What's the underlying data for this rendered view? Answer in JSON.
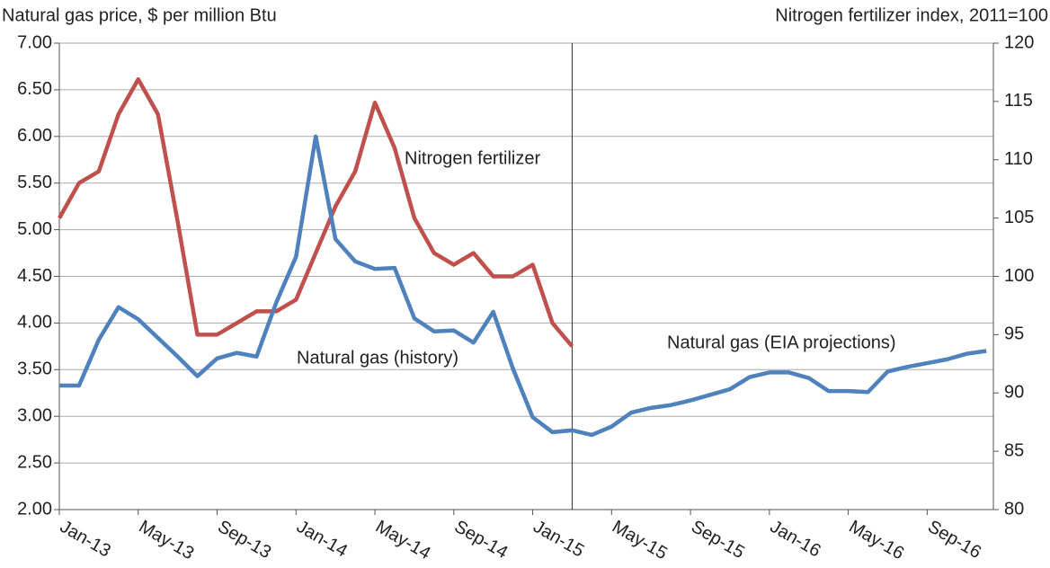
{
  "chart_data": {
    "type": "line",
    "y_title": "Natural gas price, $ per million Btu",
    "y2_title": "Nitrogen fertilizer index, 2011=100",
    "categories": [
      "Jan-13",
      null,
      null,
      null,
      "May-13",
      null,
      null,
      null,
      "Sep-13",
      null,
      null,
      null,
      "Jan-14",
      null,
      null,
      null,
      "May-14",
      null,
      null,
      null,
      "Sep-14",
      null,
      null,
      null,
      "Jan-15",
      null,
      null,
      null,
      "May-15",
      null,
      null,
      null,
      "Sep-15",
      null,
      null,
      null,
      "Jan-16",
      null,
      null,
      null,
      "May-16",
      null,
      null,
      null,
      "Sep-16",
      null,
      null,
      null
    ],
    "series": [
      {
        "name": "Nitrogen fertilizer",
        "color": "#c0504d",
        "axis": "y2",
        "values": [
          105,
          108,
          109,
          113.9,
          116.9,
          113.9,
          104.7,
          95,
          95,
          96,
          97,
          97,
          98,
          102,
          106,
          109,
          114.9,
          111,
          105,
          102,
          101,
          102,
          100,
          100,
          101,
          96,
          94,
          null,
          null,
          null,
          null,
          null,
          null,
          null,
          null,
          null,
          null,
          null,
          null,
          null,
          null,
          null,
          null,
          null,
          null,
          null,
          null,
          null
        ]
      },
      {
        "name": "Natural gas (history)",
        "color": "#4f81bd",
        "values": [
          3.33,
          3.33,
          3.82,
          4.17,
          4.04,
          3.84,
          3.64,
          3.43,
          3.62,
          3.68,
          3.64,
          4.22,
          4.71,
          6.0,
          4.9,
          4.66,
          4.58,
          4.59,
          4.05,
          3.91,
          3.92,
          3.79,
          4.12,
          3.51,
          2.99,
          2.83,
          2.85,
          null,
          null,
          null,
          null,
          null,
          null,
          null,
          null,
          null,
          null,
          null,
          null,
          null,
          null,
          null,
          null,
          null,
          null,
          null,
          null,
          null
        ]
      },
      {
        "name": "Natural gas (EIA projections)",
        "color": "#4f81bd",
        "values": [
          null,
          null,
          null,
          null,
          null,
          null,
          null,
          null,
          null,
          null,
          null,
          null,
          null,
          null,
          null,
          null,
          null,
          null,
          null,
          null,
          null,
          null,
          null,
          null,
          null,
          null,
          2.85,
          2.8,
          2.89,
          3.04,
          3.09,
          3.12,
          3.17,
          3.23,
          3.29,
          3.42,
          3.47,
          3.47,
          3.41,
          3.27,
          3.27,
          3.26,
          3.48,
          3.53,
          3.57,
          3.61,
          3.67,
          3.7
        ]
      }
    ],
    "ylim": [
      2,
      7
    ],
    "yticks": [
      {
        "value": 2,
        "label": "2.00"
      },
      {
        "value": 2.5,
        "label": "2.50"
      },
      {
        "value": 3,
        "label": "3.00"
      },
      {
        "value": 3.5,
        "label": "3.50"
      },
      {
        "value": 4,
        "label": "4.00"
      },
      {
        "value": 4.5,
        "label": "4.50"
      },
      {
        "value": 5,
        "label": "5.00"
      },
      {
        "value": 5.5,
        "label": "5.50"
      },
      {
        "value": 6,
        "label": "6.00"
      },
      {
        "value": 6.5,
        "label": "6.50"
      },
      {
        "value": 7,
        "label": "7.00"
      }
    ],
    "y2lim": [
      80,
      120
    ],
    "y2ticks": [
      80,
      85,
      90,
      95,
      100,
      105,
      110,
      115,
      120
    ],
    "grid": true
  }
}
